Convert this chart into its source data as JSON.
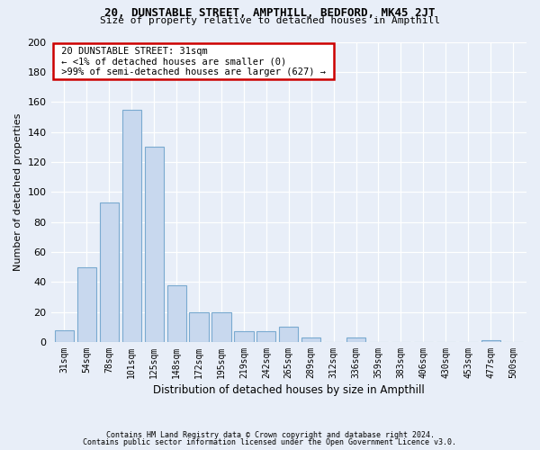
{
  "title1": "20, DUNSTABLE STREET, AMPTHILL, BEDFORD, MK45 2JT",
  "title2": "Size of property relative to detached houses in Ampthill",
  "xlabel": "Distribution of detached houses by size in Ampthill",
  "ylabel": "Number of detached properties",
  "footer1": "Contains HM Land Registry data © Crown copyright and database right 2024.",
  "footer2": "Contains public sector information licensed under the Open Government Licence v3.0.",
  "annotation_title": "20 DUNSTABLE STREET: 31sqm",
  "annotation_line1": "← <1% of detached houses are smaller (0)",
  "annotation_line2": ">99% of semi-detached houses are larger (627) →",
  "bar_color": "#c8d8ee",
  "bar_edge_color": "#7aaad0",
  "annotation_box_color": "#ffffff",
  "annotation_border_color": "#cc0000",
  "background_color": "#e8eef8",
  "plot_background": "#e8eef8",
  "grid_color": "#ffffff",
  "categories": [
    "31sqm",
    "54sqm",
    "78sqm",
    "101sqm",
    "125sqm",
    "148sqm",
    "172sqm",
    "195sqm",
    "219sqm",
    "242sqm",
    "265sqm",
    "289sqm",
    "312sqm",
    "336sqm",
    "359sqm",
    "383sqm",
    "406sqm",
    "430sqm",
    "453sqm",
    "477sqm",
    "500sqm"
  ],
  "values": [
    8,
    50,
    93,
    155,
    130,
    38,
    20,
    20,
    7,
    7,
    10,
    3,
    0,
    3,
    0,
    0,
    0,
    0,
    0,
    1,
    0
  ],
  "ylim": [
    0,
    200
  ],
  "yticks": [
    0,
    20,
    40,
    60,
    80,
    100,
    120,
    140,
    160,
    180,
    200
  ],
  "figsize": [
    6.0,
    5.0
  ],
  "dpi": 100
}
